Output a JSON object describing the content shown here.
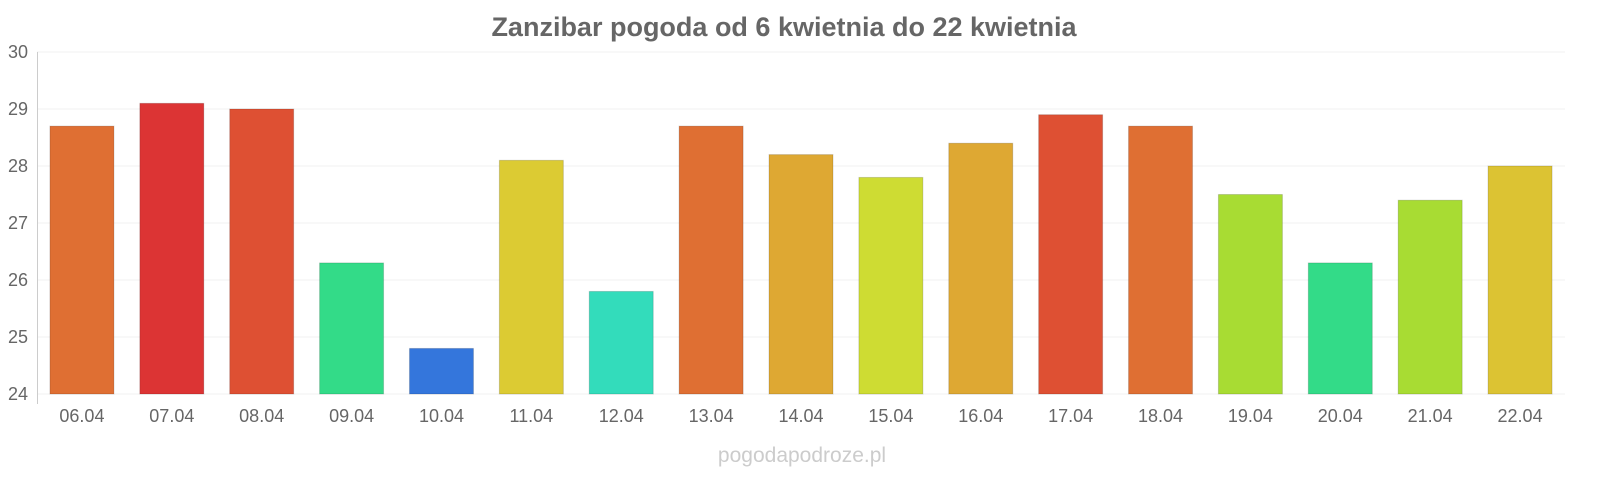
{
  "chart_data": {
    "type": "bar",
    "title": "Zanzibar pogoda od 6 kwietnia do 22 kwietnia",
    "xlabel": "",
    "ylabel": "",
    "ylim": [
      24,
      30
    ],
    "yticks": [
      24,
      25,
      26,
      27,
      28,
      29,
      30
    ],
    "grid": true,
    "categories": [
      "06.04",
      "07.04",
      "08.04",
      "09.04",
      "10.04",
      "11.04",
      "12.04",
      "13.04",
      "14.04",
      "15.04",
      "16.04",
      "17.04",
      "18.04",
      "19.04",
      "20.04",
      "21.04",
      "22.04"
    ],
    "values": [
      28.7,
      29.1,
      29.0,
      26.3,
      24.8,
      28.1,
      25.8,
      28.7,
      28.2,
      27.8,
      28.4,
      28.9,
      28.7,
      27.5,
      26.3,
      27.4,
      28.0
    ],
    "colors": [
      "#df6f33",
      "#dc3434",
      "#de5033",
      "#33db88",
      "#3476dc",
      "#dccb33",
      "#33dcbb",
      "#df6f33",
      "#dea833",
      "#cedc33",
      "#dea833",
      "#de5033",
      "#df6f33",
      "#a8dc33",
      "#33db88",
      "#a8dc33",
      "#dcc333"
    ]
  },
  "footer": "pogodapodroze.pl"
}
